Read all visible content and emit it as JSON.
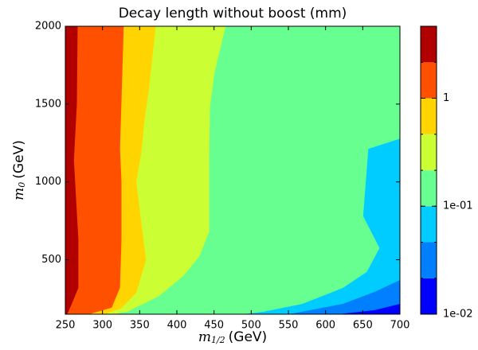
{
  "chart_data": {
    "type": "contourf",
    "title": "Decay length without boost (mm)",
    "xlabel": {
      "symbol": "m",
      "subscript": "1/2",
      "unit": "(GeV)"
    },
    "ylabel": {
      "symbol": "m",
      "subscript": "0",
      "unit": "(GeV)"
    },
    "xlim": [
      250,
      700
    ],
    "ylim": [
      150,
      2000
    ],
    "xticks": [
      250,
      300,
      350,
      400,
      450,
      500,
      550,
      600,
      650,
      700
    ],
    "yticks": [
      500,
      1000,
      1500,
      2000
    ],
    "contours": [
      {
        "x": [
          612,
          666,
          700
        ],
        "y": [
          150,
          179,
          219
        ]
      },
      {
        "x": [
          548,
          623,
          666,
          700
        ],
        "y": [
          150,
          219,
          296,
          372
        ]
      },
      {
        "x": [
          484,
          516,
          569,
          623,
          655,
          672,
          650,
          657,
          700
        ],
        "y": [
          150,
          168,
          219,
          321,
          423,
          575,
          780,
          1214,
          1280
        ]
      },
      {
        "x": [
          312,
          334,
          376,
          409,
          430,
          443,
          443,
          444,
          450,
          465
        ],
        "y": [
          150,
          170,
          270,
          400,
          525,
          680,
          1140,
          1480,
          1700,
          2000
        ]
      },
      {
        "x": [
          301,
          325,
          345,
          358,
          350,
          345,
          352,
          356,
          362,
          371
        ],
        "y": [
          150,
          190,
          290,
          500,
          800,
          1000,
          1200,
          1400,
          1600,
          2000
        ]
      },
      {
        "x": [
          280,
          312,
          323,
          325,
          325,
          323,
          325,
          328
        ],
        "y": [
          150,
          194,
          321,
          628,
          1000,
          1214,
          1520,
          2000
        ]
      },
      {
        "x": [
          252,
          258,
          267,
          267,
          261,
          265,
          266
        ],
        "y": [
          150,
          215,
          320,
          630,
          1140,
          1500,
          2000
        ]
      }
    ],
    "colorbar": {
      "scale": "log",
      "levels": [
        0.01,
        0.0215,
        0.0464,
        0.1,
        0.215,
        0.464,
        1,
        2.15,
        4.64
      ],
      "colors": [
        "#0000ff",
        "#0080ff",
        "#00ccff",
        "#66ff90",
        "#ccff33",
        "#ffd400",
        "#ff5000",
        "#b00000"
      ],
      "ticks": [
        {
          "value": 0.01,
          "label": "1e-02"
        },
        {
          "value": 0.1,
          "label": "1e-01"
        },
        1
      ]
    }
  }
}
